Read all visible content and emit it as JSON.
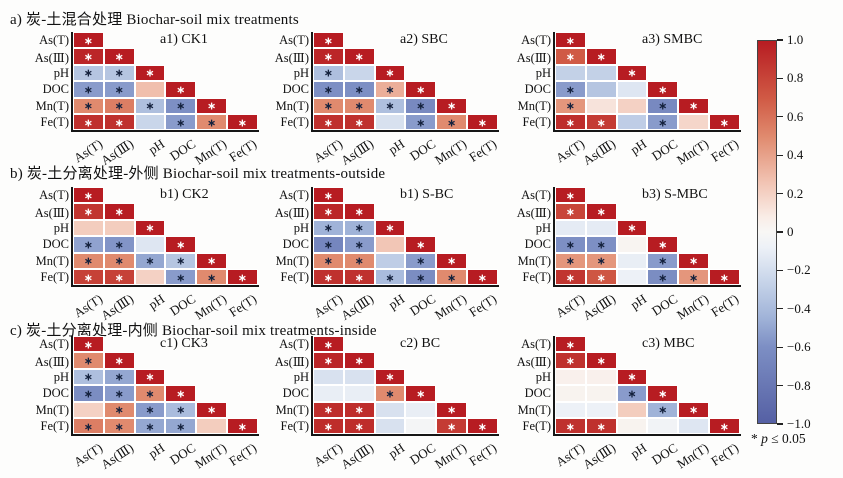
{
  "sections": [
    {
      "header": "a) 炭-土混合处理 Biochar-soil mix treatments"
    },
    {
      "header": "b) 炭-土分离处理-外侧 Biochar-soil mix treatments-outside"
    },
    {
      "header": "c) 炭-土分离处理-内侧 Biochar-soil mix treatments-inside"
    }
  ],
  "legend": {
    "marker": "*",
    "pvar": "p",
    "rest": "≤ 0.05"
  },
  "chart_data": {
    "type": "heatmap",
    "subtype": "lower-triangle correlation matrices, 3x3 grid",
    "variables": [
      "As(T)",
      "As(Ⅲ)",
      "pH",
      "DOC",
      "Mn(T)",
      "Fe(T)"
    ],
    "value_range": [
      -1,
      1
    ],
    "sig_note": "* p ≤ 0.05",
    "colorbar_ticks": [
      "1.0",
      "0.8",
      "0.6",
      "0.4",
      "0.2",
      "0",
      "−0.2",
      "−0.4",
      "−0.6",
      "−0.8",
      "−1.0"
    ],
    "colormap_stops": [
      [
        1.0,
        "#b71c22"
      ],
      [
        0.7,
        "#d05a45"
      ],
      [
        0.5,
        "#e08a6e"
      ],
      [
        0.25,
        "#f2c6b6"
      ],
      [
        0.08,
        "#f9ece6"
      ],
      [
        0.0,
        "#f8f7f5"
      ],
      [
        -0.08,
        "#edf1f7"
      ],
      [
        -0.25,
        "#c9d6ea"
      ],
      [
        -0.45,
        "#a0b3d8"
      ],
      [
        -0.6,
        "#7d8fc4"
      ],
      [
        -1.0,
        "#5560a4"
      ]
    ],
    "matrices": [
      {
        "id": "a1",
        "title": "a1) CK1",
        "values": [
          [
            1
          ],
          [
            0.95,
            1
          ],
          [
            -0.35,
            -0.35,
            1
          ],
          [
            -0.55,
            -0.55,
            0.28,
            1
          ],
          [
            0.5,
            0.55,
            -0.38,
            -0.6,
            1
          ],
          [
            0.9,
            0.9,
            -0.25,
            -0.55,
            0.5,
            1
          ]
        ],
        "sig": [
          [
            1
          ],
          [
            1,
            1
          ],
          [
            1,
            1,
            1
          ],
          [
            1,
            1,
            0,
            1
          ],
          [
            1,
            1,
            1,
            1,
            1
          ],
          [
            1,
            1,
            0,
            1,
            1,
            1
          ]
        ]
      },
      {
        "id": "a2",
        "title": "a2) SBC",
        "values": [
          [
            1
          ],
          [
            0.95,
            1
          ],
          [
            -0.38,
            -0.25,
            1
          ],
          [
            -0.6,
            -0.6,
            0.35,
            1
          ],
          [
            0.5,
            0.5,
            -0.38,
            -0.65,
            1
          ],
          [
            0.9,
            0.9,
            -0.18,
            -0.55,
            0.5,
            1
          ]
        ],
        "sig": [
          [
            1
          ],
          [
            1,
            1
          ],
          [
            1,
            0,
            1
          ],
          [
            1,
            1,
            1,
            1
          ],
          [
            1,
            1,
            1,
            1,
            1
          ],
          [
            1,
            1,
            0,
            1,
            1,
            1
          ]
        ]
      },
      {
        "id": "a3",
        "title": "a3) SMBC",
        "values": [
          [
            1
          ],
          [
            0.7,
            1
          ],
          [
            -0.28,
            -0.28,
            1
          ],
          [
            -0.55,
            -0.35,
            -0.15,
            1
          ],
          [
            0.45,
            0.12,
            0.2,
            -0.65,
            1
          ],
          [
            0.92,
            0.85,
            -0.3,
            -0.55,
            0.18,
            1
          ]
        ],
        "sig": [
          [
            1
          ],
          [
            1,
            1
          ],
          [
            0,
            0,
            1
          ],
          [
            1,
            0,
            0,
            1
          ],
          [
            1,
            0,
            0,
            1,
            1
          ],
          [
            1,
            1,
            0,
            1,
            0,
            1
          ]
        ]
      },
      {
        "id": "b1",
        "title": "b1) CK2",
        "values": [
          [
            1
          ],
          [
            0.88,
            1
          ],
          [
            0.22,
            0.22,
            1
          ],
          [
            -0.52,
            -0.58,
            -0.15,
            1
          ],
          [
            0.5,
            0.5,
            -0.5,
            -0.35,
            1
          ],
          [
            0.82,
            0.82,
            0.2,
            -0.55,
            0.5,
            1
          ]
        ],
        "sig": [
          [
            1
          ],
          [
            1,
            1
          ],
          [
            0,
            0,
            1
          ],
          [
            1,
            1,
            0,
            1
          ],
          [
            1,
            1,
            1,
            1,
            1
          ],
          [
            1,
            1,
            0,
            1,
            1,
            1
          ]
        ]
      },
      {
        "id": "b2",
        "title": "b1) S-BC",
        "values": [
          [
            1
          ],
          [
            0.95,
            1
          ],
          [
            -0.45,
            -0.45,
            1
          ],
          [
            -0.68,
            -0.55,
            0.25,
            1
          ],
          [
            0.5,
            0.5,
            -0.3,
            -0.55,
            1
          ],
          [
            0.9,
            0.9,
            -0.4,
            -0.62,
            0.5,
            1
          ]
        ],
        "sig": [
          [
            1
          ],
          [
            1,
            1
          ],
          [
            1,
            1,
            1
          ],
          [
            1,
            1,
            0,
            1
          ],
          [
            1,
            1,
            0,
            1,
            1
          ],
          [
            1,
            1,
            1,
            1,
            1,
            1
          ]
        ]
      },
      {
        "id": "b3",
        "title": "b3) S-MBC",
        "values": [
          [
            1
          ],
          [
            0.8,
            1
          ],
          [
            -0.12,
            -0.12,
            1
          ],
          [
            -0.6,
            -0.6,
            0.02,
            1
          ],
          [
            0.45,
            0.45,
            -0.1,
            -0.55,
            1
          ],
          [
            0.88,
            0.72,
            -0.08,
            -0.62,
            0.45,
            1
          ]
        ],
        "sig": [
          [
            1
          ],
          [
            1,
            1
          ],
          [
            0,
            0,
            1
          ],
          [
            1,
            1,
            0,
            1
          ],
          [
            1,
            1,
            0,
            1,
            1
          ],
          [
            1,
            1,
            0,
            1,
            1,
            1
          ]
        ]
      },
      {
        "id": "c1",
        "title": "c1) CK3",
        "values": [
          [
            1
          ],
          [
            0.5,
            1
          ],
          [
            -0.38,
            -0.5,
            1
          ],
          [
            -0.62,
            -0.55,
            0.5,
            1
          ],
          [
            0.2,
            0.5,
            -0.55,
            -0.4,
            1
          ],
          [
            0.55,
            0.5,
            -0.5,
            -0.5,
            0.22,
            1
          ]
        ],
        "sig": [
          [
            1
          ],
          [
            1,
            1
          ],
          [
            1,
            1,
            1
          ],
          [
            1,
            1,
            1,
            1
          ],
          [
            0,
            1,
            1,
            1,
            1
          ],
          [
            1,
            1,
            1,
            1,
            0,
            1
          ]
        ]
      },
      {
        "id": "c2",
        "title": "c2) BC",
        "values": [
          [
            1
          ],
          [
            0.95,
            1
          ],
          [
            -0.18,
            -0.18,
            1
          ],
          [
            -0.1,
            -0.1,
            0.5,
            1
          ],
          [
            0.92,
            0.92,
            -0.18,
            -0.1,
            1
          ],
          [
            0.92,
            0.92,
            -0.18,
            -0.03,
            0.85,
            1
          ]
        ],
        "sig": [
          [
            1
          ],
          [
            1,
            1
          ],
          [
            0,
            0,
            1
          ],
          [
            0,
            0,
            1,
            1
          ],
          [
            1,
            1,
            0,
            0,
            1
          ],
          [
            1,
            1,
            0,
            0,
            1,
            1
          ]
        ]
      },
      {
        "id": "c3",
        "title": "c3) MBC",
        "values": [
          [
            1
          ],
          [
            0.9,
            1
          ],
          [
            0.05,
            0.05,
            1
          ],
          [
            0.03,
            0.03,
            -0.55,
            1
          ],
          [
            -0.08,
            -0.08,
            0.22,
            -0.45,
            1
          ],
          [
            0.9,
            0.9,
            0.03,
            -0.05,
            -0.15,
            1
          ]
        ],
        "sig": [
          [
            1
          ],
          [
            1,
            1
          ],
          [
            0,
            0,
            1
          ],
          [
            0,
            0,
            1,
            1
          ],
          [
            0,
            0,
            0,
            1,
            1
          ],
          [
            1,
            1,
            0,
            0,
            0,
            1
          ]
        ]
      }
    ]
  }
}
